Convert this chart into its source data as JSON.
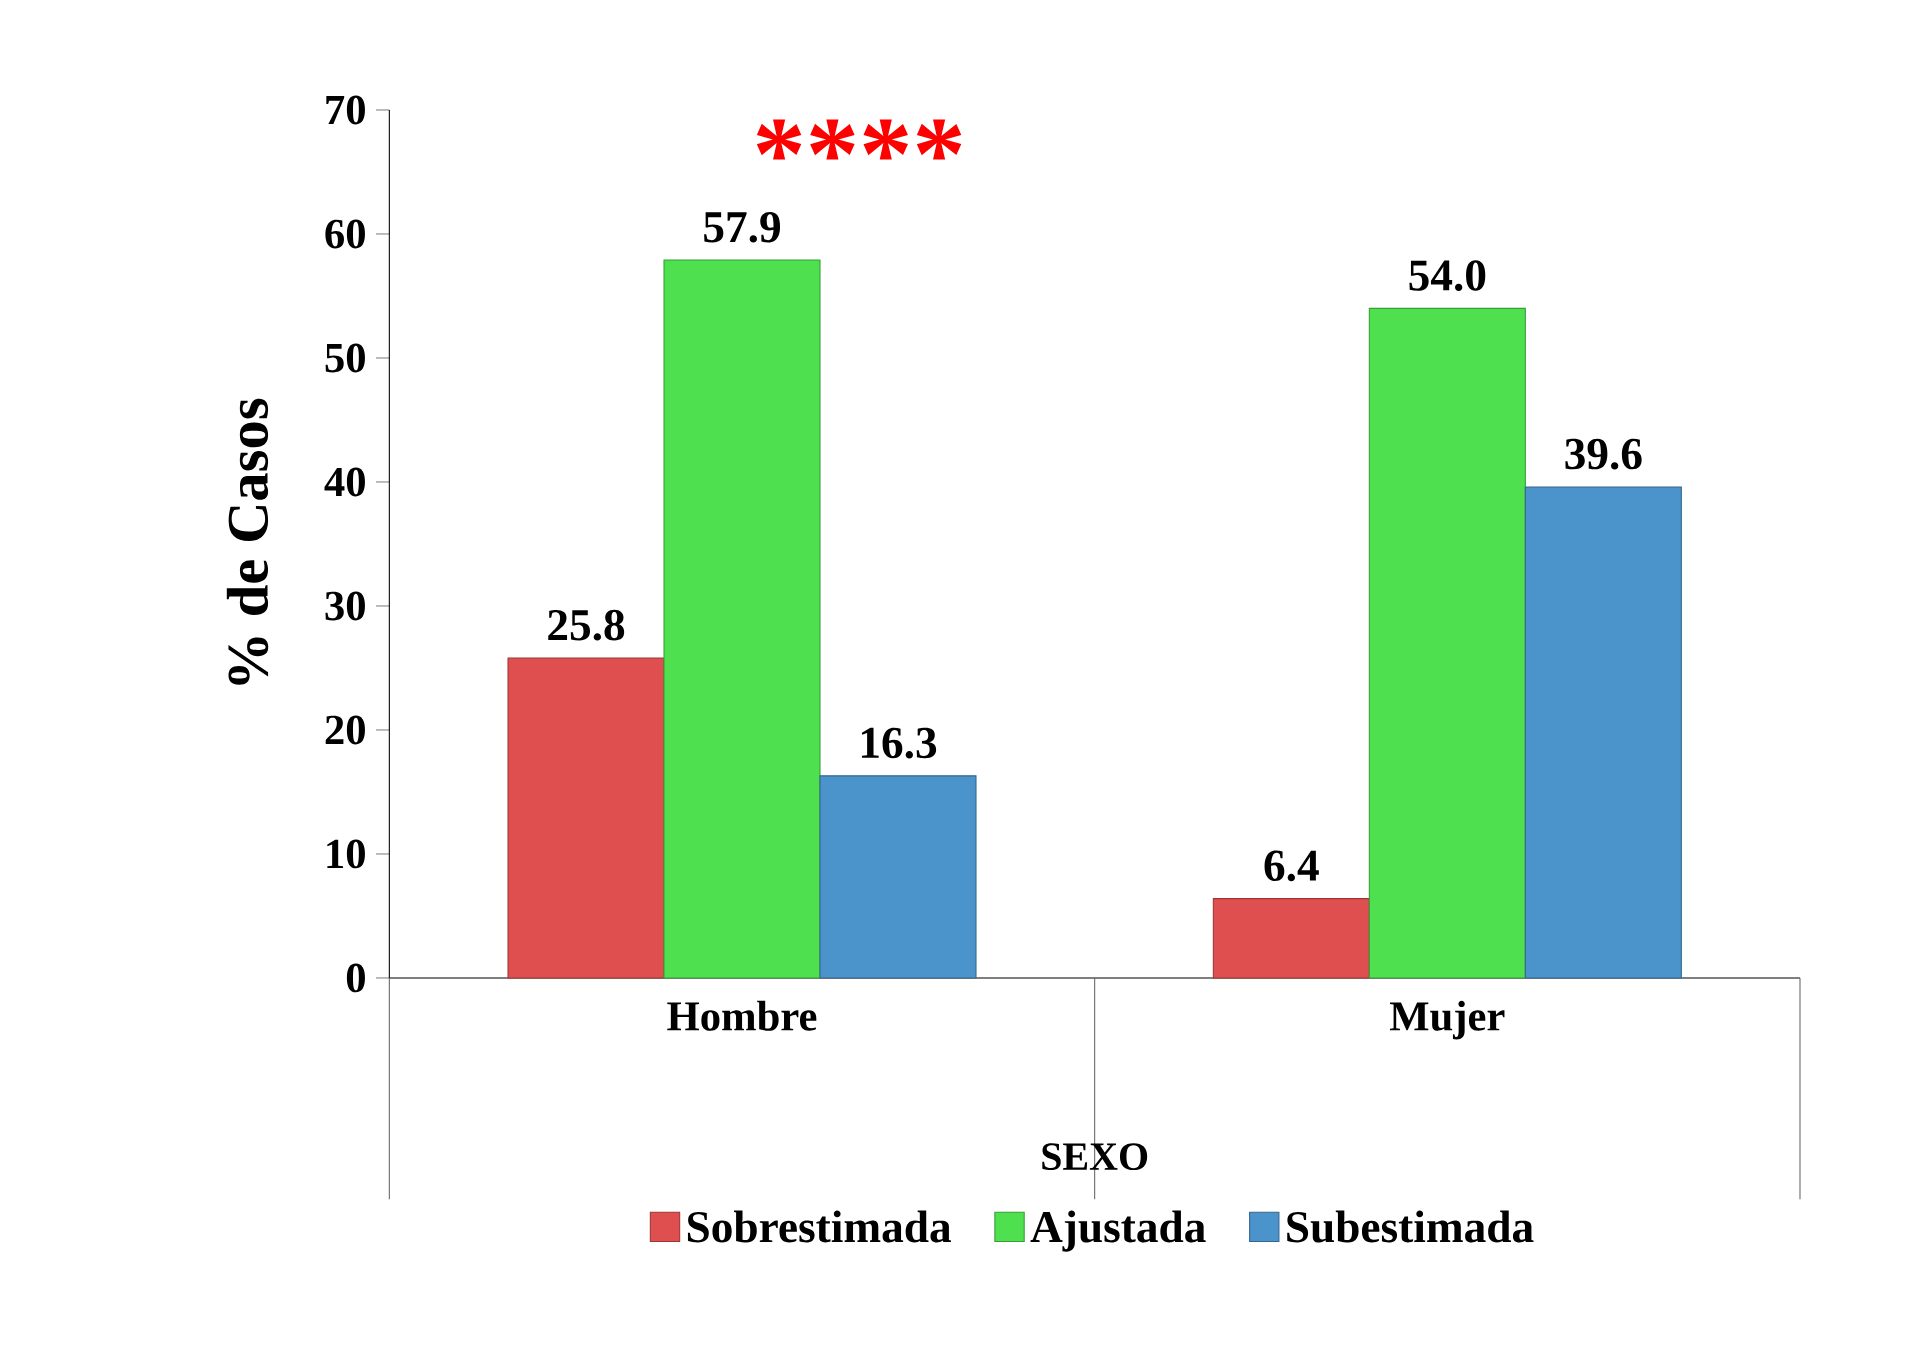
{
  "chart_data": {
    "type": "bar",
    "categories": [
      "Hombre",
      "Mujer"
    ],
    "series": [
      {
        "name": "Sobrestimada",
        "color": "#e04f4f",
        "values": [
          25.8,
          6.4
        ],
        "value_labels": [
          "25.8",
          "6.4"
        ]
      },
      {
        "name": "Ajustada",
        "color": "#4fe04f",
        "values": [
          57.9,
          54.0
        ],
        "value_labels": [
          "57.9",
          "54.0"
        ]
      },
      {
        "name": "Subestimada",
        "color": "#4a93cb",
        "values": [
          16.3,
          39.6
        ],
        "value_labels": [
          "16.3",
          "39.6"
        ]
      }
    ],
    "xlabel": "SEXO",
    "ylabel": "% de Casos",
    "ylim": [
      0,
      70
    ],
    "yticks": [
      0,
      10,
      20,
      30,
      40,
      50,
      60,
      70
    ],
    "annotations": [
      "****"
    ],
    "legend": "bottom",
    "grid": false
  }
}
